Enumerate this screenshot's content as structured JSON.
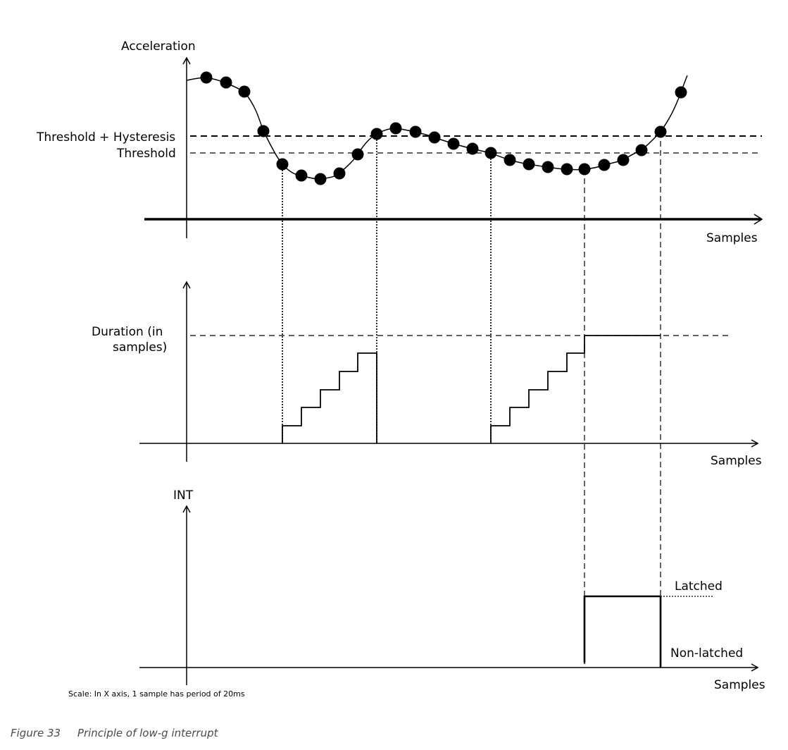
{
  "labels": {
    "acceleration": "Acceleration",
    "threshold_hysteresis": "Threshold + Hysteresis",
    "threshold": "Threshold",
    "samples_1": "Samples",
    "duration_line1": "Duration (in",
    "duration_line2": "samples)",
    "samples_2": "Samples",
    "int": "INT",
    "latched": "Latched",
    "non_latched": "Non-latched",
    "samples_3": "Samples",
    "scale_note": "Scale: In X axis, 1 sample has period of 20ms"
  },
  "caption": {
    "number": "Figure 33",
    "text": "Principle of low-g interrupt"
  }
}
